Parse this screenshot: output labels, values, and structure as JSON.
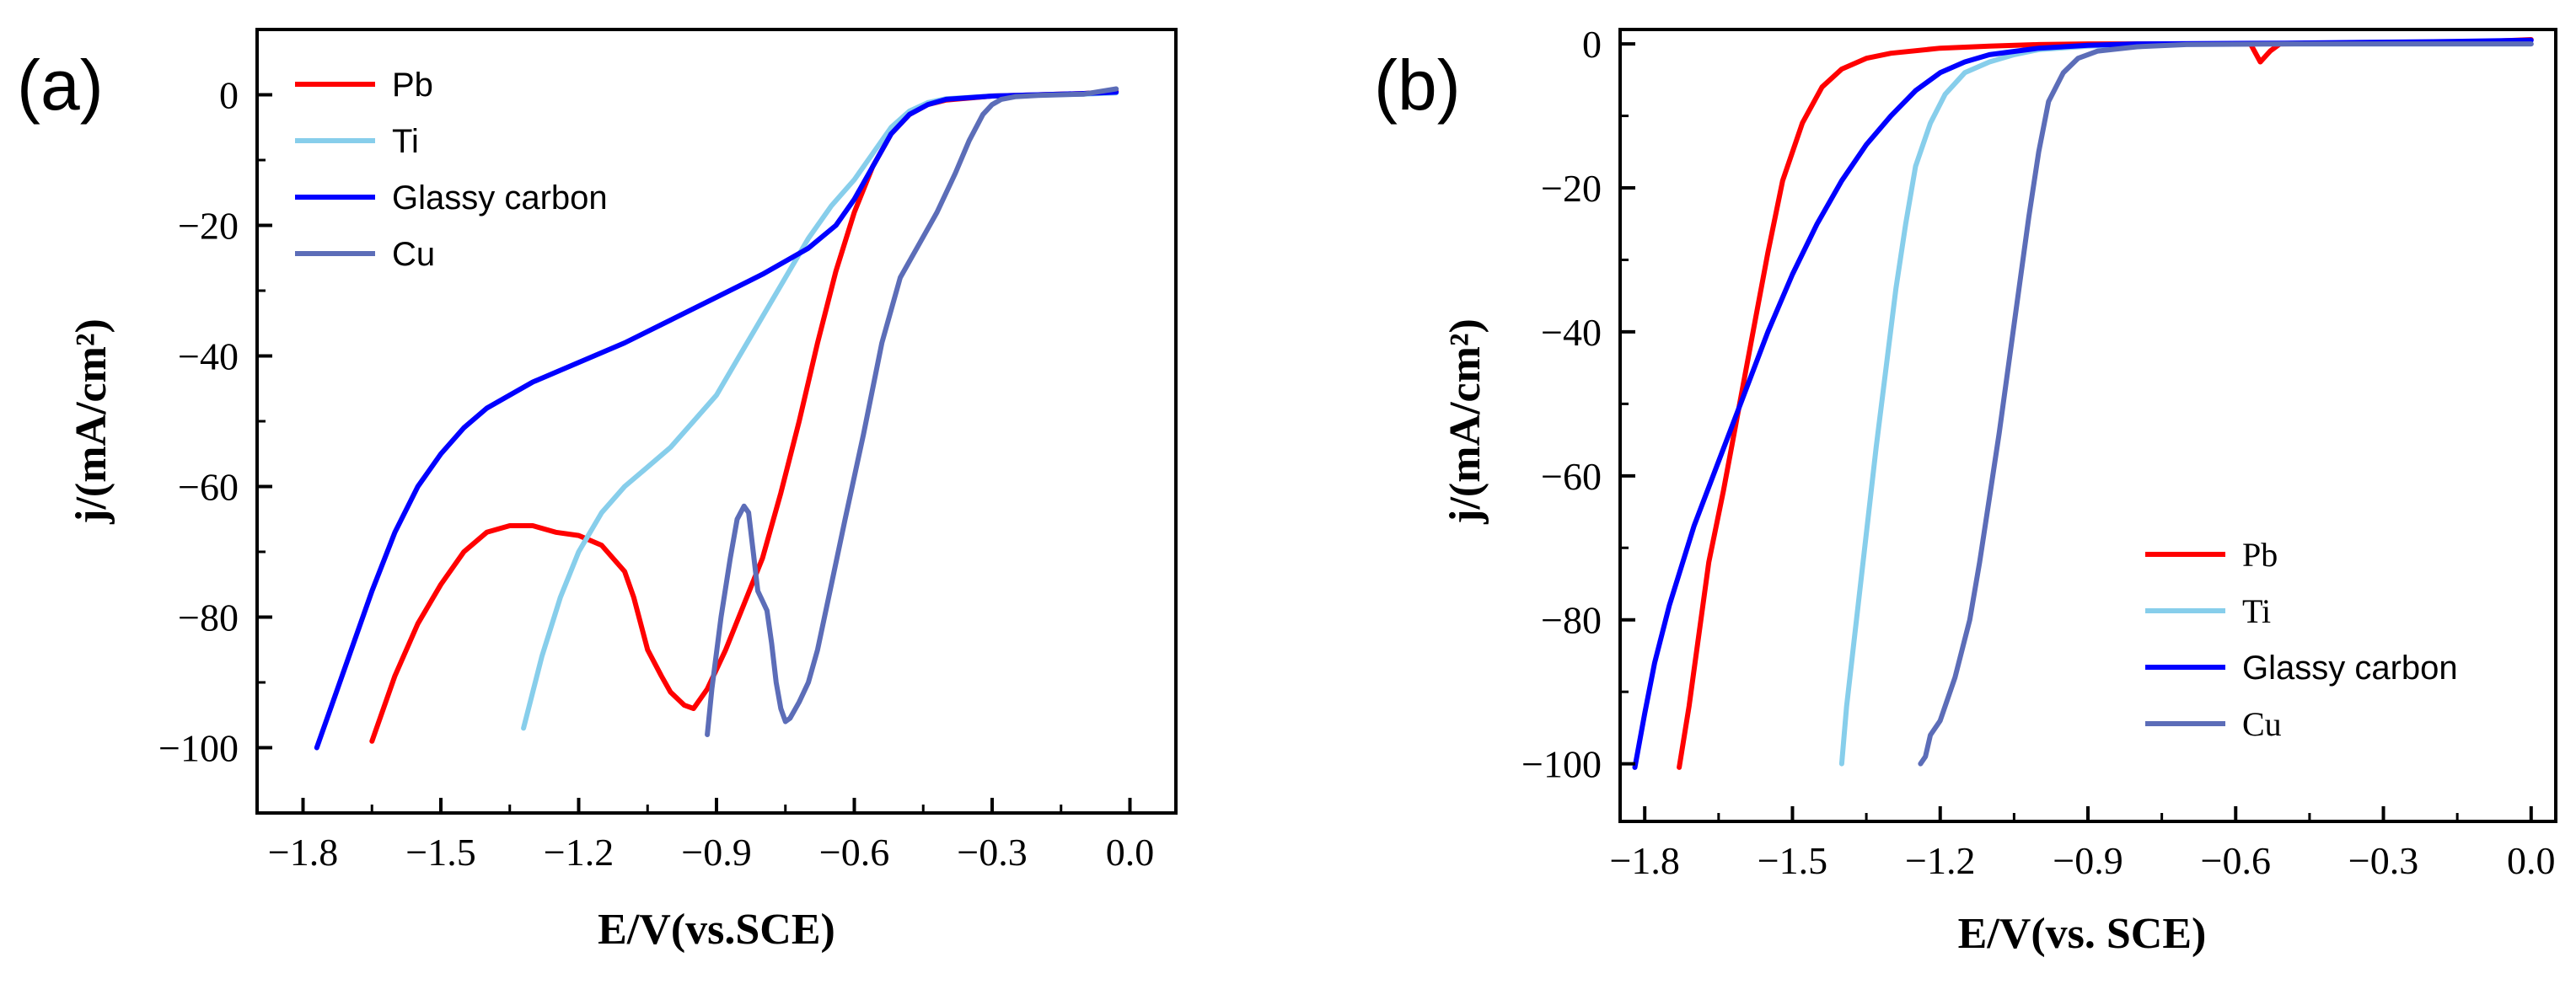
{
  "chart_data": [
    {
      "panel": "(a)",
      "type": "line",
      "xlabel": "E/V(vs.SCE)",
      "ylabel": "j/(mA/cm²)",
      "xlim": [
        -1.9,
        0.1
      ],
      "ylim": [
        -110,
        10
      ],
      "xticks": [
        -1.8,
        -1.5,
        -1.2,
        -0.9,
        -0.6,
        -0.3,
        0.0
      ],
      "xtick_labels": [
        "−1.8",
        "−1.5",
        "−1.2",
        "−0.9",
        "−0.6",
        "−0.3",
        "0.0"
      ],
      "yticks": [
        0,
        -20,
        -40,
        -60,
        -80,
        -100
      ],
      "ytick_labels": [
        "0",
        "−20",
        "−40",
        "−60",
        "−80",
        "−100"
      ],
      "legend_position": "top-left",
      "series": [
        {
          "name": "Pb",
          "color": "#ff0000",
          "points": [
            [
              -1.65,
              -99
            ],
            [
              -1.6,
              -89
            ],
            [
              -1.55,
              -81
            ],
            [
              -1.5,
              -75
            ],
            [
              -1.45,
              -70
            ],
            [
              -1.4,
              -67
            ],
            [
              -1.35,
              -66
            ],
            [
              -1.3,
              -66
            ],
            [
              -1.25,
              -67
            ],
            [
              -1.2,
              -67.5
            ],
            [
              -1.15,
              -69
            ],
            [
              -1.1,
              -73
            ],
            [
              -1.08,
              -77
            ],
            [
              -1.05,
              -85
            ],
            [
              -1.02,
              -89
            ],
            [
              -1.0,
              -91.5
            ],
            [
              -0.97,
              -93.5
            ],
            [
              -0.95,
              -94
            ],
            [
              -0.92,
              -91
            ],
            [
              -0.88,
              -85
            ],
            [
              -0.84,
              -78
            ],
            [
              -0.8,
              -71
            ],
            [
              -0.76,
              -61
            ],
            [
              -0.72,
              -50
            ],
            [
              -0.68,
              -38
            ],
            [
              -0.64,
              -27
            ],
            [
              -0.6,
              -18
            ],
            [
              -0.56,
              -11
            ],
            [
              -0.52,
              -6
            ],
            [
              -0.48,
              -3
            ],
            [
              -0.44,
              -1.5
            ],
            [
              -0.4,
              -0.8
            ],
            [
              -0.3,
              -0.2
            ],
            [
              -0.2,
              0
            ],
            [
              -0.1,
              0.2
            ],
            [
              -0.03,
              0.5
            ]
          ]
        },
        {
          "name": "Ti",
          "color": "#87ceeb",
          "points": [
            [
              -1.32,
              -97
            ],
            [
              -1.28,
              -86
            ],
            [
              -1.24,
              -77
            ],
            [
              -1.2,
              -70
            ],
            [
              -1.15,
              -64
            ],
            [
              -1.1,
              -60
            ],
            [
              -1.05,
              -57
            ],
            [
              -1.0,
              -54
            ],
            [
              -0.95,
              -50
            ],
            [
              -0.9,
              -46
            ],
            [
              -0.85,
              -40
            ],
            [
              -0.8,
              -34
            ],
            [
              -0.75,
              -28
            ],
            [
              -0.7,
              -22
            ],
            [
              -0.65,
              -17
            ],
            [
              -0.6,
              -13
            ],
            [
              -0.56,
              -9
            ],
            [
              -0.52,
              -5
            ],
            [
              -0.48,
              -2.5
            ],
            [
              -0.44,
              -1.2
            ],
            [
              -0.4,
              -0.6
            ],
            [
              -0.3,
              -0.2
            ],
            [
              -0.2,
              0
            ],
            [
              -0.1,
              0.1
            ],
            [
              -0.03,
              0.3
            ]
          ]
        },
        {
          "name": "Glassy carbon",
          "color": "#0000ff",
          "points": [
            [
              -1.77,
              -100
            ],
            [
              -1.74,
              -94
            ],
            [
              -1.7,
              -86
            ],
            [
              -1.65,
              -76
            ],
            [
              -1.6,
              -67
            ],
            [
              -1.55,
              -60
            ],
            [
              -1.5,
              -55
            ],
            [
              -1.45,
              -51
            ],
            [
              -1.4,
              -48
            ],
            [
              -1.35,
              -46
            ],
            [
              -1.3,
              -44
            ],
            [
              -1.2,
              -41
            ],
            [
              -1.1,
              -38
            ],
            [
              -1.0,
              -34.5
            ],
            [
              -0.9,
              -31
            ],
            [
              -0.8,
              -27.5
            ],
            [
              -0.7,
              -23.5
            ],
            [
              -0.64,
              -20
            ],
            [
              -0.6,
              -16
            ],
            [
              -0.56,
              -11
            ],
            [
              -0.52,
              -6
            ],
            [
              -0.48,
              -3
            ],
            [
              -0.44,
              -1.5
            ],
            [
              -0.4,
              -0.7
            ],
            [
              -0.3,
              -0.2
            ],
            [
              -0.2,
              0
            ],
            [
              -0.1,
              0.2
            ],
            [
              -0.03,
              0.4
            ]
          ]
        },
        {
          "name": "Cu",
          "color": "#5c6db8",
          "points": [
            [
              -0.92,
              -98
            ],
            [
              -0.91,
              -91
            ],
            [
              -0.89,
              -80
            ],
            [
              -0.87,
              -71
            ],
            [
              -0.855,
              -65
            ],
            [
              -0.84,
              -63
            ],
            [
              -0.83,
              -64
            ],
            [
              -0.82,
              -70
            ],
            [
              -0.81,
              -76
            ],
            [
              -0.8,
              -77.5
            ],
            [
              -0.79,
              -79
            ],
            [
              -0.78,
              -84
            ],
            [
              -0.77,
              -90
            ],
            [
              -0.76,
              -94
            ],
            [
              -0.75,
              -96
            ],
            [
              -0.74,
              -95.5
            ],
            [
              -0.72,
              -93
            ],
            [
              -0.7,
              -90
            ],
            [
              -0.68,
              -85
            ],
            [
              -0.65,
              -75
            ],
            [
              -0.62,
              -65
            ],
            [
              -0.58,
              -52
            ],
            [
              -0.54,
              -38
            ],
            [
              -0.5,
              -28
            ],
            [
              -0.46,
              -23
            ],
            [
              -0.42,
              -18
            ],
            [
              -0.38,
              -12
            ],
            [
              -0.35,
              -7
            ],
            [
              -0.32,
              -3
            ],
            [
              -0.3,
              -1.5
            ],
            [
              -0.28,
              -0.7
            ],
            [
              -0.25,
              -0.3
            ],
            [
              -0.2,
              -0.1
            ],
            [
              -0.1,
              0.1
            ],
            [
              -0.03,
              0.9
            ]
          ]
        }
      ]
    },
    {
      "panel": "(b)",
      "type": "line",
      "xlabel": "E/V(vs. SCE)",
      "ylabel": "j/(mA/cm²)",
      "xlim": [
        -1.85,
        0.05
      ],
      "ylim": [
        -108,
        2
      ],
      "xticks": [
        -1.8,
        -1.5,
        -1.2,
        -0.9,
        -0.6,
        -0.3,
        0.0
      ],
      "xtick_labels": [
        "−1.8",
        "−1.5",
        "−1.2",
        "−0.9",
        "−0.6",
        "−0.3",
        "0.0"
      ],
      "yticks": [
        0,
        -20,
        -40,
        -60,
        -80,
        -100
      ],
      "ytick_labels": [
        "0",
        "−20",
        "−40",
        "−60",
        "−80",
        "−100"
      ],
      "legend_position": "bottom-right",
      "series": [
        {
          "name": "Pb",
          "color": "#ff0000",
          "points": [
            [
              -1.73,
              -100.5
            ],
            [
              -1.71,
              -92
            ],
            [
              -1.69,
              -82
            ],
            [
              -1.67,
              -72
            ],
            [
              -1.64,
              -62
            ],
            [
              -1.61,
              -51
            ],
            [
              -1.58,
              -40
            ],
            [
              -1.55,
              -29
            ],
            [
              -1.52,
              -19
            ],
            [
              -1.48,
              -11
            ],
            [
              -1.44,
              -6
            ],
            [
              -1.4,
              -3.5
            ],
            [
              -1.35,
              -2
            ],
            [
              -1.3,
              -1.3
            ],
            [
              -1.2,
              -0.6
            ],
            [
              -1.1,
              -0.3
            ],
            [
              -1.0,
              -0.1
            ],
            [
              -0.9,
              0
            ],
            [
              -0.6,
              0
            ],
            [
              -0.57,
              0
            ],
            [
              -0.55,
              -2.5
            ],
            [
              -0.53,
              -1
            ],
            [
              -0.51,
              0
            ],
            [
              -0.3,
              0.1
            ],
            [
              -0.1,
              0.3
            ],
            [
              0.0,
              0.6
            ]
          ]
        },
        {
          "name": "Ti",
          "color": "#87ceeb",
          "points": [
            [
              -1.4,
              -100
            ],
            [
              -1.39,
              -92
            ],
            [
              -1.37,
              -80
            ],
            [
              -1.35,
              -68
            ],
            [
              -1.33,
              -56
            ],
            [
              -1.31,
              -45
            ],
            [
              -1.29,
              -34
            ],
            [
              -1.27,
              -25
            ],
            [
              -1.25,
              -17
            ],
            [
              -1.22,
              -11
            ],
            [
              -1.19,
              -7
            ],
            [
              -1.15,
              -4
            ],
            [
              -1.1,
              -2.5
            ],
            [
              -1.05,
              -1.5
            ],
            [
              -1.0,
              -0.8
            ],
            [
              -0.9,
              -0.3
            ],
            [
              -0.8,
              -0.1
            ],
            [
              -0.6,
              0
            ],
            [
              -0.3,
              0
            ],
            [
              0.0,
              0
            ]
          ]
        },
        {
          "name": "Glassy carbon",
          "color": "#0000ff",
          "points": [
            [
              -1.82,
              -100.5
            ],
            [
              -1.8,
              -93
            ],
            [
              -1.78,
              -86
            ],
            [
              -1.75,
              -78
            ],
            [
              -1.7,
              -67
            ],
            [
              -1.65,
              -58
            ],
            [
              -1.6,
              -49
            ],
            [
              -1.55,
              -40
            ],
            [
              -1.5,
              -32
            ],
            [
              -1.45,
              -25
            ],
            [
              -1.4,
              -19
            ],
            [
              -1.35,
              -14
            ],
            [
              -1.3,
              -10
            ],
            [
              -1.25,
              -6.5
            ],
            [
              -1.2,
              -4
            ],
            [
              -1.15,
              -2.5
            ],
            [
              -1.1,
              -1.5
            ],
            [
              -1.0,
              -0.6
            ],
            [
              -0.9,
              -0.2
            ],
            [
              -0.8,
              0
            ],
            [
              -0.5,
              0.1
            ],
            [
              -0.2,
              0.3
            ],
            [
              0.0,
              0.5
            ]
          ]
        },
        {
          "name": "Cu",
          "color": "#5c6db8",
          "points": [
            [
              -1.24,
              -100
            ],
            [
              -1.23,
              -99
            ],
            [
              -1.22,
              -96
            ],
            [
              -1.2,
              -94
            ],
            [
              -1.17,
              -88
            ],
            [
              -1.14,
              -80
            ],
            [
              -1.12,
              -72
            ],
            [
              -1.1,
              -63
            ],
            [
              -1.08,
              -54
            ],
            [
              -1.06,
              -44
            ],
            [
              -1.04,
              -34
            ],
            [
              -1.02,
              -24
            ],
            [
              -1.0,
              -15
            ],
            [
              -0.98,
              -8
            ],
            [
              -0.95,
              -4
            ],
            [
              -0.92,
              -2
            ],
            [
              -0.88,
              -1
            ],
            [
              -0.8,
              -0.4
            ],
            [
              -0.7,
              -0.1
            ],
            [
              -0.5,
              0
            ],
            [
              -0.3,
              0
            ],
            [
              0.0,
              0
            ]
          ]
        }
      ]
    }
  ]
}
